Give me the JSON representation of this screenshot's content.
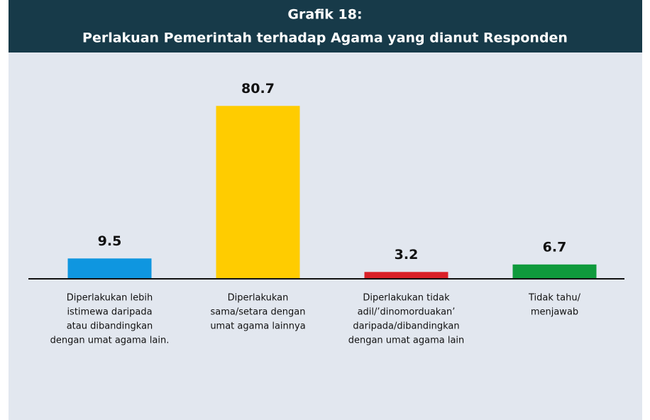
{
  "chart_data": {
    "type": "bar",
    "title": [
      "Grafik 18:",
      "Perlakuan Pemerintah terhadap Agama yang dianut Responden"
    ],
    "categories": [
      [
        "Diperlakukan lebih",
        "istimewa daripada",
        "atau dibandingkan",
        "dengan umat agama lain."
      ],
      [
        "Diperlakukan",
        "sama/setara dengan",
        "umat agama lainnya"
      ],
      [
        "Diperlakukan tidak",
        "adil/’dinomorduakan’",
        "daripada/dibandingkan",
        "dengan umat agama lain"
      ],
      [
        "Tidak tahu/",
        "menjawab"
      ]
    ],
    "values": [
      9.5,
      80.7,
      3.2,
      6.7
    ],
    "colors": [
      "#0f96e0",
      "#ffcc00",
      "#d92027",
      "#0f9a3c"
    ],
    "ylim": [
      0,
      100
    ]
  }
}
